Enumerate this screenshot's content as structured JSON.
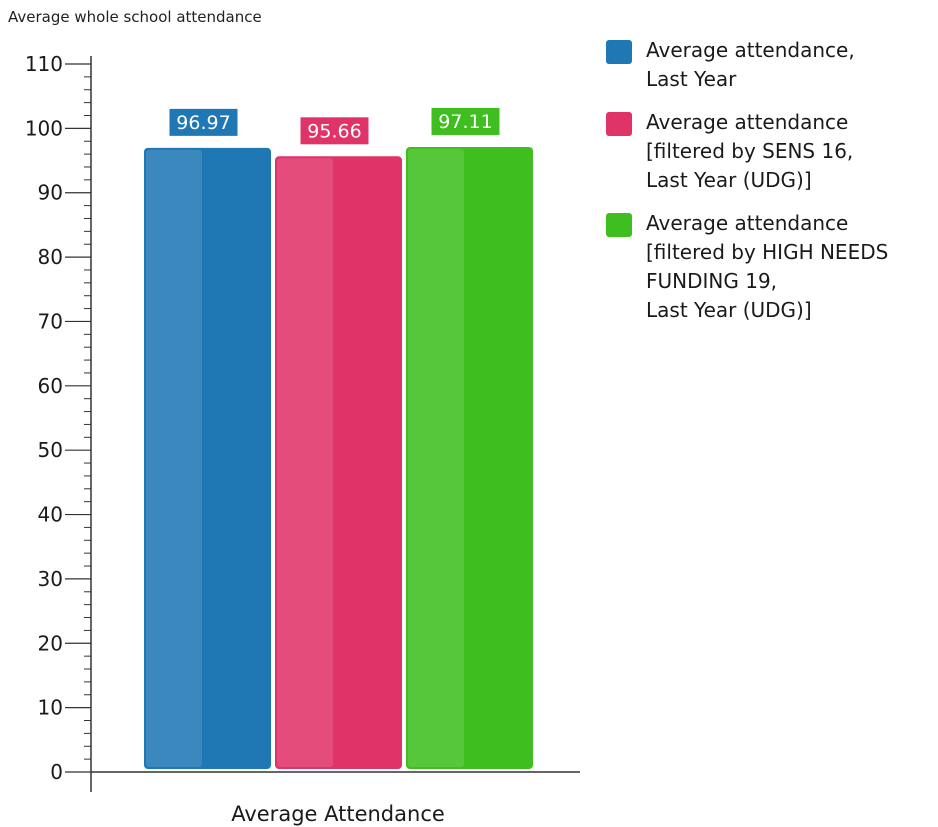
{
  "title": "Average whole school attendance",
  "chart_data": {
    "type": "bar",
    "categories": [
      "Average Attendance"
    ],
    "xlabel": "Average Attendance",
    "ylabel": "",
    "ylim": [
      0,
      110
    ],
    "y_ticks": [
      0,
      10,
      20,
      30,
      40,
      50,
      60,
      70,
      80,
      90,
      100,
      110
    ],
    "minor_tick_step": 2,
    "grid": false,
    "legend_position": "right",
    "series": [
      {
        "name": "Average attendance,\nLast Year",
        "values": [
          96.97
        ],
        "label": "96.97",
        "color": "#1f78b4"
      },
      {
        "name": "Average attendance\n[filtered by SENS 16,\nLast Year (UDG)]",
        "values": [
          95.66
        ],
        "label": "95.66",
        "color": "#e03469"
      },
      {
        "name": "Average attendance\n[filtered by HIGH NEEDS\nFUNDING 19,\nLast Year (UDG)]",
        "values": [
          97.11
        ],
        "label": "97.11",
        "color": "#3fbf1f"
      }
    ]
  }
}
